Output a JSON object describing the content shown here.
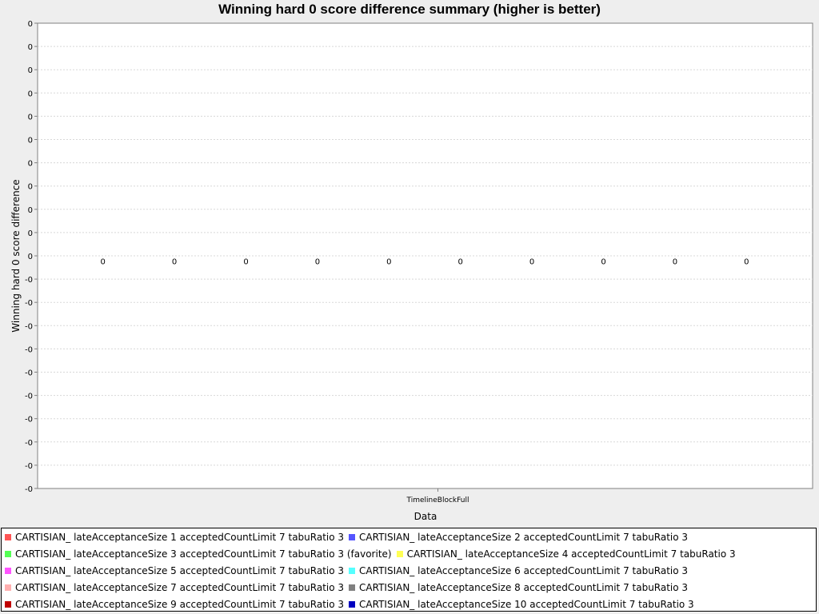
{
  "chart_data": {
    "type": "bar",
    "title": "Winning hard 0 score difference summary (higher is better)",
    "xlabel": "Data",
    "ylabel": "Winning hard 0 score difference",
    "categories": [
      "TimelineBlockFull"
    ],
    "y_tick_labels": [
      "0",
      "0",
      "0",
      "0",
      "0",
      "0",
      "0",
      "0",
      "0",
      "0",
      "0",
      "-0",
      "-0",
      "-0",
      "-0",
      "-0",
      "-0",
      "-0",
      "-0",
      "-0",
      "-0"
    ],
    "grid": true,
    "legend_position": "bottom",
    "series": [
      {
        "name": "CARTISIAN_ lateAcceptanceSize 1 acceptedCountLimit 7 tabuRatio 3",
        "values": [
          0
        ],
        "value_label": "0",
        "color": "#ff5555"
      },
      {
        "name": "CARTISIAN_ lateAcceptanceSize 2 acceptedCountLimit 7 tabuRatio 3",
        "values": [
          0
        ],
        "value_label": "0",
        "color": "#5555ff"
      },
      {
        "name": "CARTISIAN_ lateAcceptanceSize 3 acceptedCountLimit 7 tabuRatio 3 (favorite)",
        "values": [
          0
        ],
        "value_label": "0",
        "color": "#55ff55"
      },
      {
        "name": "CARTISIAN_ lateAcceptanceSize 4 acceptedCountLimit 7 tabuRatio 3",
        "values": [
          0
        ],
        "value_label": "0",
        "color": "#ffff55"
      },
      {
        "name": "CARTISIAN_ lateAcceptanceSize 5 acceptedCountLimit 7 tabuRatio 3",
        "values": [
          0
        ],
        "value_label": "0",
        "color": "#ff55ff"
      },
      {
        "name": "CARTISIAN_ lateAcceptanceSize 6 acceptedCountLimit 7 tabuRatio 3",
        "values": [
          0
        ],
        "value_label": "0",
        "color": "#55ffff"
      },
      {
        "name": "CARTISIAN_ lateAcceptanceSize 7 acceptedCountLimit 7 tabuRatio 3",
        "values": [
          0
        ],
        "value_label": "0",
        "color": "#ffafaf"
      },
      {
        "name": "CARTISIAN_ lateAcceptanceSize 8 acceptedCountLimit 7 tabuRatio 3",
        "values": [
          0
        ],
        "value_label": "0",
        "color": "#808080"
      },
      {
        "name": "CARTISIAN_ lateAcceptanceSize 9 acceptedCountLimit 7 tabuRatio 3",
        "values": [
          0
        ],
        "value_label": "0",
        "color": "#c00000"
      },
      {
        "name": "CARTISIAN_ lateAcceptanceSize 10 acceptedCountLimit 7 tabuRatio 3",
        "values": [
          0
        ],
        "value_label": "0",
        "color": "#0000c0"
      }
    ]
  }
}
